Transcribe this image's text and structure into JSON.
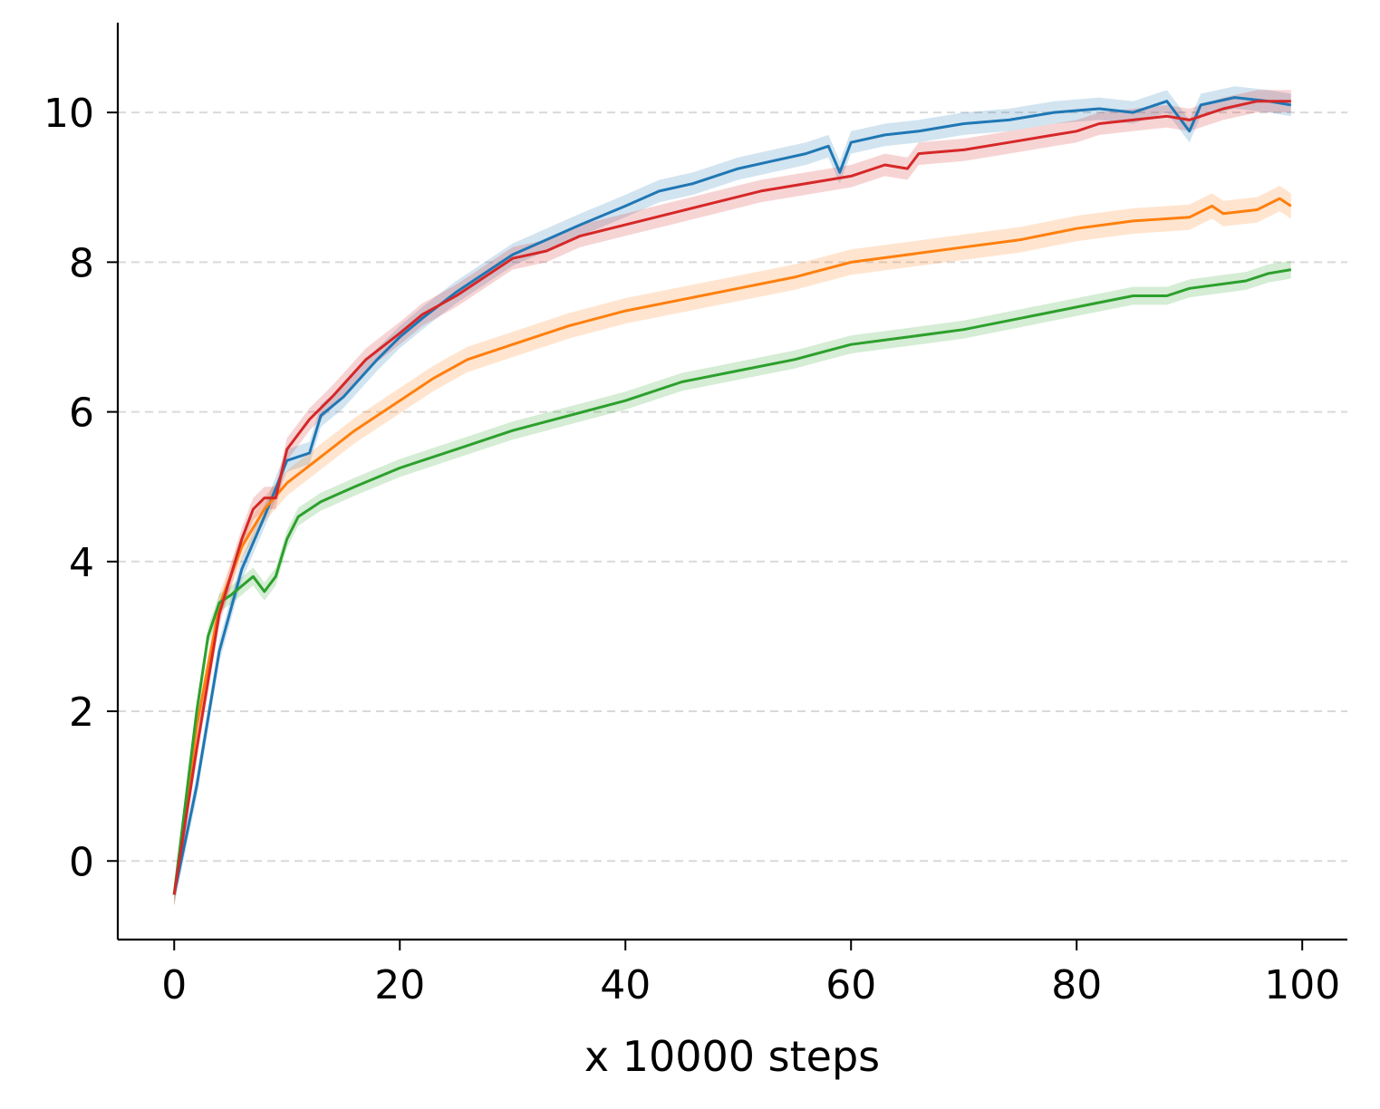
{
  "chart_data": {
    "type": "line",
    "title": "",
    "xlabel": "x 10000 steps",
    "ylabel": "",
    "xlim": [
      -5,
      104
    ],
    "ylim": [
      -1.05,
      11.2
    ],
    "x_ticks": [
      0,
      20,
      40,
      60,
      80,
      100
    ],
    "y_ticks": [
      0,
      2,
      4,
      6,
      8,
      10
    ],
    "grid": "horizontal dashed",
    "legend": "none",
    "series": [
      {
        "color": "#1f77b4",
        "band": 0.15,
        "points": [
          [
            0,
            -0.45
          ],
          [
            2,
            1.0
          ],
          [
            4,
            2.8
          ],
          [
            6,
            3.9
          ],
          [
            8,
            4.6
          ],
          [
            10,
            5.35
          ],
          [
            12,
            5.45
          ],
          [
            13,
            5.95
          ],
          [
            15,
            6.2
          ],
          [
            18,
            6.7
          ],
          [
            20,
            7.0
          ],
          [
            22,
            7.25
          ],
          [
            25,
            7.6
          ],
          [
            27,
            7.8
          ],
          [
            30,
            8.1
          ],
          [
            33,
            8.3
          ],
          [
            36,
            8.5
          ],
          [
            40,
            8.75
          ],
          [
            43,
            8.95
          ],
          [
            46,
            9.05
          ],
          [
            50,
            9.25
          ],
          [
            53,
            9.35
          ],
          [
            56,
            9.45
          ],
          [
            58,
            9.55
          ],
          [
            59,
            9.2
          ],
          [
            60,
            9.6
          ],
          [
            63,
            9.7
          ],
          [
            66,
            9.75
          ],
          [
            70,
            9.85
          ],
          [
            74,
            9.9
          ],
          [
            78,
            10.0
          ],
          [
            82,
            10.05
          ],
          [
            85,
            10.0
          ],
          [
            88,
            10.15
          ],
          [
            90,
            9.75
          ],
          [
            91,
            10.1
          ],
          [
            94,
            10.2
          ],
          [
            97,
            10.15
          ],
          [
            99,
            10.1
          ]
        ]
      },
      {
        "color": "#ff7f0e",
        "band": 0.17,
        "points": [
          [
            0,
            -0.45
          ],
          [
            2,
            1.8
          ],
          [
            4,
            3.4
          ],
          [
            6,
            4.2
          ],
          [
            8,
            4.7
          ],
          [
            10,
            5.05
          ],
          [
            13,
            5.4
          ],
          [
            16,
            5.75
          ],
          [
            20,
            6.15
          ],
          [
            23,
            6.45
          ],
          [
            26,
            6.7
          ],
          [
            30,
            6.9
          ],
          [
            35,
            7.15
          ],
          [
            40,
            7.35
          ],
          [
            45,
            7.5
          ],
          [
            50,
            7.65
          ],
          [
            55,
            7.8
          ],
          [
            60,
            8.0
          ],
          [
            65,
            8.1
          ],
          [
            70,
            8.2
          ],
          [
            75,
            8.3
          ],
          [
            80,
            8.45
          ],
          [
            85,
            8.55
          ],
          [
            90,
            8.6
          ],
          [
            92,
            8.75
          ],
          [
            93,
            8.65
          ],
          [
            96,
            8.7
          ],
          [
            98,
            8.85
          ],
          [
            99,
            8.75
          ]
        ]
      },
      {
        "color": "#2ca02c",
        "band": 0.12,
        "points": [
          [
            0,
            -0.45
          ],
          [
            2,
            2.0
          ],
          [
            3,
            3.0
          ],
          [
            4,
            3.45
          ],
          [
            5,
            3.55
          ],
          [
            7,
            3.8
          ],
          [
            8,
            3.6
          ],
          [
            9,
            3.8
          ],
          [
            10,
            4.3
          ],
          [
            11,
            4.6
          ],
          [
            13,
            4.8
          ],
          [
            16,
            5.0
          ],
          [
            20,
            5.25
          ],
          [
            25,
            5.5
          ],
          [
            30,
            5.75
          ],
          [
            35,
            5.95
          ],
          [
            40,
            6.15
          ],
          [
            45,
            6.4
          ],
          [
            50,
            6.55
          ],
          [
            55,
            6.7
          ],
          [
            60,
            6.9
          ],
          [
            65,
            7.0
          ],
          [
            70,
            7.1
          ],
          [
            75,
            7.25
          ],
          [
            80,
            7.4
          ],
          [
            85,
            7.55
          ],
          [
            88,
            7.55
          ],
          [
            90,
            7.65
          ],
          [
            95,
            7.75
          ],
          [
            97,
            7.85
          ],
          [
            99,
            7.9
          ]
        ]
      },
      {
        "color": "#d62728",
        "band": 0.15,
        "points": [
          [
            0,
            -0.45
          ],
          [
            2,
            1.5
          ],
          [
            4,
            3.3
          ],
          [
            6,
            4.3
          ],
          [
            7,
            4.7
          ],
          [
            8,
            4.85
          ],
          [
            9,
            4.85
          ],
          [
            10,
            5.5
          ],
          [
            12,
            5.9
          ],
          [
            14,
            6.2
          ],
          [
            17,
            6.7
          ],
          [
            20,
            7.05
          ],
          [
            22,
            7.3
          ],
          [
            25,
            7.55
          ],
          [
            28,
            7.85
          ],
          [
            30,
            8.05
          ],
          [
            33,
            8.15
          ],
          [
            36,
            8.35
          ],
          [
            40,
            8.5
          ],
          [
            44,
            8.65
          ],
          [
            48,
            8.8
          ],
          [
            52,
            8.95
          ],
          [
            56,
            9.05
          ],
          [
            60,
            9.15
          ],
          [
            63,
            9.3
          ],
          [
            65,
            9.25
          ],
          [
            66,
            9.45
          ],
          [
            70,
            9.5
          ],
          [
            74,
            9.6
          ],
          [
            78,
            9.7
          ],
          [
            80,
            9.75
          ],
          [
            82,
            9.85
          ],
          [
            85,
            9.9
          ],
          [
            88,
            9.95
          ],
          [
            90,
            9.9
          ],
          [
            93,
            10.05
          ],
          [
            96,
            10.15
          ],
          [
            99,
            10.15
          ]
        ]
      }
    ]
  }
}
